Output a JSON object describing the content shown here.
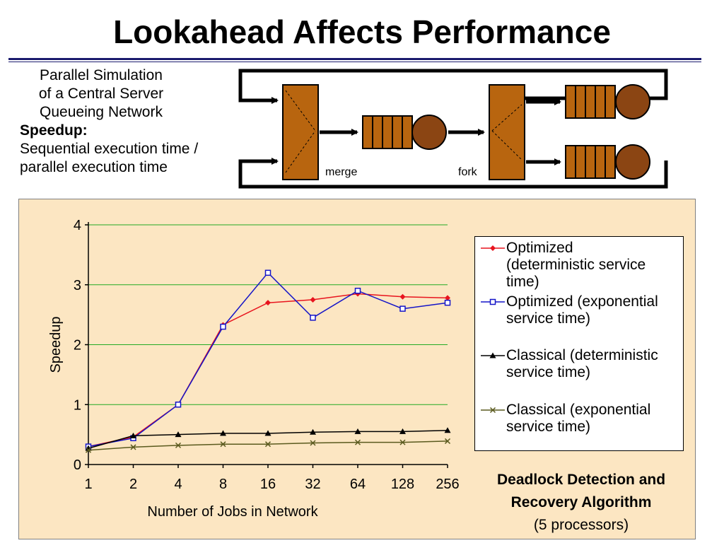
{
  "slide": {
    "title": "Lookahead Affects Performance"
  },
  "intro": {
    "line1": "Parallel Simulation",
    "line2": "of a Central Server",
    "line3": "Queueing Network",
    "speedup_label": "Speedup:",
    "speedup_def1": "Sequential execution time /",
    "speedup_def2": "parallel execution time"
  },
  "diagram": {
    "merge_label": "merge",
    "fork_label": "fork",
    "colors": {
      "box": "#b8650f",
      "server": "#8b4513",
      "line": "#000000"
    }
  },
  "caption": {
    "line1": "Deadlock Detection and",
    "line2": "Recovery Algorithm",
    "line3": "(5 processors)"
  },
  "chart_data": {
    "type": "line",
    "title": "",
    "xlabel": "Number of Jobs in Network",
    "ylabel": "Speedup",
    "x": [
      "1",
      "2",
      "4",
      "8",
      "16",
      "32",
      "64",
      "128",
      "256"
    ],
    "ylim": [
      0,
      4
    ],
    "yticks": [
      "0",
      "1",
      "2",
      "3",
      "4"
    ],
    "grid": true,
    "legend_position": "right",
    "colors": {
      "background": "#fce6c2",
      "grid": "#22aa22"
    },
    "series": [
      {
        "name": "Optimized (deterministic service time)",
        "legend_lines": [
          "Optimized",
          "(deterministic service",
          "time)"
        ],
        "color": "#e8141e",
        "marker": "diamond",
        "values": [
          0.3,
          0.46,
          1.0,
          2.33,
          2.7,
          2.75,
          2.85,
          2.8,
          2.78
        ]
      },
      {
        "name": "Optimized (exponential service time)",
        "legend_lines": [
          "Optimized (exponential",
          "service time)"
        ],
        "color": "#1414c8",
        "marker": "square",
        "values": [
          0.3,
          0.44,
          1.0,
          2.3,
          3.2,
          2.45,
          2.9,
          2.6,
          2.7
        ]
      },
      {
        "name": "Classical (deterministic service time)",
        "legend_lines": [
          "Classical (deterministic",
          "service time)"
        ],
        "color": "#000000",
        "marker": "triangle",
        "values": [
          0.27,
          0.48,
          0.5,
          0.52,
          0.52,
          0.54,
          0.55,
          0.55,
          0.57
        ]
      },
      {
        "name": "Classical (exponential service time)",
        "legend_lines": [
          "Classical (exponential",
          "service time)"
        ],
        "color": "#5a5a1e",
        "marker": "x",
        "values": [
          0.24,
          0.29,
          0.32,
          0.34,
          0.34,
          0.36,
          0.37,
          0.37,
          0.39
        ]
      }
    ]
  }
}
